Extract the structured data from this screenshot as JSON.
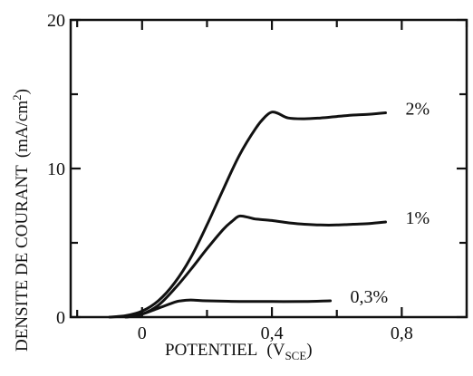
{
  "chart_data": {
    "type": "line",
    "title": "",
    "xlabel": "POTENTIEL",
    "xlabel_unit": "(V",
    "xlabel_unit_sub": "SCE",
    "xlabel_unit_close": ")",
    "ylabel": "DENSITE DE COURANT",
    "ylabel_unit": "(mA/cm",
    "ylabel_unit_sup": "2",
    "ylabel_unit_close": ")",
    "xlim": [
      -0.22,
      1.0
    ],
    "ylim": [
      0,
      20
    ],
    "xticks": [
      0,
      0.4,
      0.8
    ],
    "xtick_labels": [
      "0",
      "0,4",
      "0,8"
    ],
    "yticks": [
      0,
      10,
      20
    ],
    "ytick_labels": [
      "0",
      "10",
      "20"
    ],
    "grid": false,
    "legend": "inline labels at right end of each curve",
    "series": [
      {
        "name": "2%",
        "x": [
          -0.1,
          -0.05,
          0.0,
          0.05,
          0.1,
          0.15,
          0.2,
          0.25,
          0.3,
          0.35,
          0.38,
          0.4,
          0.42,
          0.45,
          0.5,
          0.55,
          0.6,
          0.65,
          0.7,
          0.75
        ],
        "y": [
          0.0,
          0.1,
          0.4,
          1.1,
          2.3,
          4.0,
          6.2,
          8.6,
          10.9,
          12.7,
          13.5,
          13.8,
          13.7,
          13.4,
          13.35,
          13.4,
          13.5,
          13.6,
          13.65,
          13.75
        ]
      },
      {
        "name": "1%",
        "x": [
          -0.05,
          0.0,
          0.05,
          0.1,
          0.15,
          0.2,
          0.25,
          0.28,
          0.3,
          0.33,
          0.35,
          0.4,
          0.45,
          0.5,
          0.55,
          0.6,
          0.65,
          0.7,
          0.75
        ],
        "y": [
          0.0,
          0.2,
          0.8,
          1.9,
          3.2,
          4.6,
          5.9,
          6.5,
          6.8,
          6.7,
          6.6,
          6.5,
          6.35,
          6.25,
          6.2,
          6.2,
          6.25,
          6.3,
          6.4
        ]
      },
      {
        "name": "0,3%",
        "x": [
          -0.05,
          0.0,
          0.05,
          0.1,
          0.12,
          0.15,
          0.2,
          0.3,
          0.4,
          0.5,
          0.58
        ],
        "y": [
          0.0,
          0.2,
          0.6,
          1.0,
          1.1,
          1.15,
          1.1,
          1.05,
          1.05,
          1.05,
          1.1
        ]
      }
    ]
  }
}
